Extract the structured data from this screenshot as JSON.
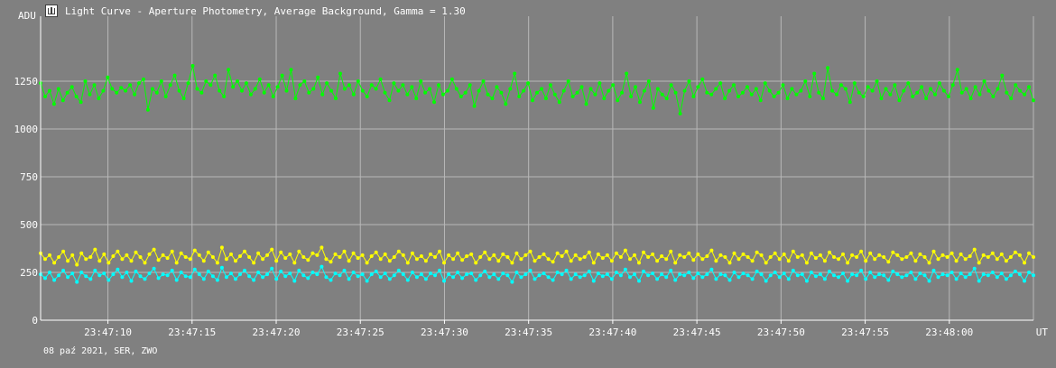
{
  "window": {
    "title": "Light Curve - Aperture Photometry, Average Background, Gamma = 1.30",
    "icon": "photometry-app-icon"
  },
  "footer": {
    "text": "08 paź 2021, SER, ZWO"
  },
  "chart_data": {
    "type": "line",
    "title": "Light Curve - Aperture Photometry, Average Background, Gamma = 1.30",
    "ylabel": "ADU",
    "xlabel": "UT",
    "ylim": [
      0,
      1500
    ],
    "yticks": [
      0,
      250,
      500,
      750,
      1000,
      1250
    ],
    "xlim": [
      "23:47:06",
      "23:48:05"
    ],
    "xticks": [
      "23:47:10",
      "23:47:15",
      "23:47:20",
      "23:47:25",
      "23:47:30",
      "23:47:35",
      "23:47:40",
      "23:47:45",
      "23:47:50",
      "23:47:55",
      "23:48:00"
    ],
    "grid": true,
    "background": "#808080",
    "grid_color": "#b8b8b8",
    "series": [
      {
        "color": "#00ff00",
        "mean": 1190,
        "spread": 55,
        "values_note": "approx. 1160-1320 ADU",
        "values": [
          1240,
          1170,
          1200,
          1130,
          1210,
          1150,
          1190,
          1220,
          1170,
          1140,
          1250,
          1180,
          1230,
          1160,
          1200,
          1270,
          1210,
          1190,
          1215,
          1200,
          1230,
          1180,
          1240,
          1260,
          1100,
          1210,
          1190,
          1250,
          1170,
          1230,
          1280,
          1200,
          1160,
          1240,
          1330,
          1210,
          1190,
          1250,
          1230,
          1280,
          1200,
          1170,
          1310,
          1220,
          1250,
          1200,
          1240,
          1180,
          1210,
          1260,
          1190,
          1230,
          1170,
          1220,
          1280,
          1200,
          1310,
          1160,
          1230,
          1250,
          1190,
          1210,
          1270,
          1180,
          1240,
          1200,
          1160,
          1290,
          1210,
          1230,
          1180,
          1250,
          1200,
          1170,
          1230,
          1210,
          1260,
          1190,
          1150,
          1240,
          1200,
          1230,
          1180,
          1220,
          1160,
          1250,
          1190,
          1210,
          1140,
          1230,
          1180,
          1200,
          1260,
          1210,
          1170,
          1190,
          1230,
          1120,
          1200,
          1250,
          1180,
          1160,
          1220,
          1190,
          1130,
          1210,
          1290,
          1170,
          1200,
          1240,
          1150,
          1190,
          1210,
          1160,
          1230,
          1180,
          1140,
          1200,
          1250,
          1170,
          1190,
          1220,
          1130,
          1210,
          1180,
          1240,
          1160,
          1200,
          1230,
          1150,
          1190,
          1290,
          1170,
          1220,
          1140,
          1200,
          1250,
          1110,
          1210,
          1180,
          1160,
          1230,
          1190,
          1080,
          1200,
          1250,
          1170,
          1220,
          1260,
          1190,
          1180,
          1210,
          1240,
          1160,
          1200,
          1230,
          1170,
          1190,
          1220,
          1180,
          1210,
          1150,
          1240,
          1200,
          1170,
          1190,
          1230,
          1160,
          1210,
          1180,
          1200,
          1250,
          1170,
          1290,
          1190,
          1160,
          1320,
          1200,
          1180,
          1230,
          1210,
          1140,
          1240,
          1190,
          1170,
          1220,
          1200,
          1250,
          1160,
          1210,
          1180,
          1230,
          1150,
          1200,
          1240,
          1170,
          1190,
          1220,
          1160,
          1210,
          1180,
          1240,
          1200,
          1170,
          1230,
          1310,
          1190,
          1210,
          1160,
          1220,
          1180,
          1250,
          1200,
          1170,
          1210,
          1280,
          1190,
          1160,
          1230,
          1200,
          1180,
          1220,
          1150
        ]
      },
      {
        "color": "#ffff00",
        "mean": 330,
        "spread": 30,
        "values_note": "approx. 290-390 ADU",
        "values": [
          350,
          320,
          340,
          300,
          330,
          360,
          310,
          340,
          290,
          350,
          320,
          330,
          370,
          310,
          345,
          300,
          335,
          360,
          320,
          340,
          310,
          355,
          330,
          300,
          345,
          370,
          315,
          340,
          325,
          360,
          300,
          350,
          330,
          320,
          365,
          340,
          310,
          355,
          330,
          300,
          380,
          320,
          345,
          310,
          335,
          360,
          330,
          300,
          350,
          320,
          340,
          370,
          310,
          355,
          325,
          345,
          300,
          360,
          330,
          315,
          350,
          340,
          380,
          320,
          305,
          345,
          330,
          360,
          310,
          350,
          325,
          340,
          300,
          335,
          355,
          320,
          345,
          310,
          330,
          360,
          340,
          300,
          350,
          320,
          335,
          310,
          345,
          330,
          360,
          300,
          340,
          320,
          350,
          315,
          335,
          345,
          300,
          330,
          355,
          320,
          340,
          310,
          345,
          330,
          300,
          350,
          320,
          340,
          360,
          310,
          330,
          345,
          320,
          305,
          350,
          335,
          360,
          310,
          340,
          320,
          330,
          355,
          300,
          345,
          325,
          340,
          310,
          350,
          330,
          365,
          320,
          340,
          300,
          355,
          330,
          345,
          310,
          335,
          320,
          360,
          300,
          340,
          330,
          350,
          315,
          345,
          320,
          335,
          365,
          310,
          340,
          330,
          300,
          350,
          320,
          345,
          330,
          310,
          355,
          340,
          300,
          330,
          350,
          320,
          345,
          310,
          360,
          330,
          340,
          300,
          350,
          325,
          340,
          310,
          355,
          330,
          320,
          345,
          300,
          340,
          330,
          360,
          310,
          350,
          320,
          340,
          330,
          305,
          355,
          340,
          320,
          330,
          350,
          310,
          345,
          330,
          300,
          360,
          320,
          340,
          330,
          350,
          310,
          345,
          320,
          335,
          370,
          300,
          340,
          330,
          350,
          320,
          345,
          310,
          330,
          355,
          340,
          300,
          350,
          330
        ]
      },
      {
        "color": "#00ffff",
        "mean": 235,
        "spread": 25,
        "values_note": "approx. 190-290 ADU",
        "values": [
          240,
          220,
          250,
          210,
          235,
          260,
          225,
          245,
          200,
          250,
          230,
          215,
          260,
          235,
          245,
          210,
          240,
          265,
          225,
          250,
          205,
          255,
          230,
          215,
          245,
          270,
          220,
          240,
          235,
          260,
          210,
          250,
          230,
          225,
          265,
          240,
          215,
          255,
          230,
          210,
          275,
          225,
          245,
          215,
          240,
          260,
          230,
          210,
          250,
          225,
          240,
          270,
          215,
          255,
          230,
          245,
          205,
          260,
          235,
          220,
          250,
          240,
          280,
          225,
          210,
          245,
          235,
          260,
          215,
          250,
          230,
          240,
          205,
          240,
          255,
          225,
          245,
          215,
          235,
          260,
          240,
          210,
          250,
          225,
          240,
          215,
          245,
          235,
          260,
          205,
          240,
          225,
          250,
          220,
          240,
          245,
          210,
          235,
          255,
          225,
          240,
          215,
          245,
          235,
          200,
          250,
          225,
          240,
          260,
          215,
          235,
          245,
          225,
          210,
          250,
          240,
          260,
          215,
          240,
          225,
          235,
          255,
          205,
          245,
          230,
          240,
          215,
          250,
          235,
          265,
          225,
          240,
          205,
          255,
          235,
          245,
          215,
          240,
          225,
          260,
          210,
          240,
          235,
          250,
          220,
          245,
          225,
          240,
          265,
          215,
          240,
          235,
          210,
          250,
          225,
          245,
          235,
          215,
          255,
          240,
          205,
          235,
          250,
          225,
          245,
          215,
          260,
          235,
          240,
          205,
          250,
          230,
          240,
          215,
          255,
          235,
          225,
          245,
          205,
          240,
          235,
          260,
          215,
          250,
          225,
          240,
          235,
          210,
          255,
          240,
          225,
          235,
          250,
          215,
          245,
          235,
          205,
          260,
          225,
          240,
          235,
          250,
          215,
          245,
          225,
          240,
          270,
          205,
          240,
          235,
          250,
          225,
          245,
          215,
          235,
          255,
          240,
          205,
          250,
          235
        ]
      }
    ]
  }
}
